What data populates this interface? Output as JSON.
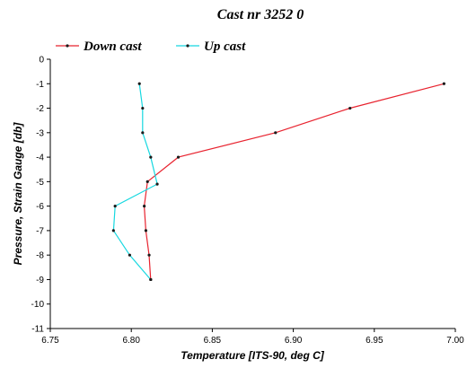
{
  "colors": {
    "down_cast": "#e8232f",
    "up_cast": "#16d8e0",
    "marker": "#1a1a1a",
    "axis": "#000000",
    "background": "#ffffff"
  },
  "chart_data": {
    "type": "line",
    "title": "Cast nr 3252 0",
    "xlabel": "Temperature [ITS-90, deg C]",
    "ylabel": "Pressure, Strain Gauge [db]",
    "xlim": [
      6.75,
      7.0
    ],
    "ylim": [
      -11,
      0
    ],
    "x_ticks": [
      "6.75",
      "6.80",
      "6.85",
      "6.90",
      "6.95",
      "7.00"
    ],
    "y_ticks": [
      "0",
      "-1",
      "-2",
      "-3",
      "-4",
      "-5",
      "-6",
      "-7",
      "-8",
      "-9",
      "-10",
      "-11"
    ],
    "grid": false,
    "legend_position": "top-left",
    "series": [
      {
        "name": "Down cast",
        "color": "#e8232f",
        "points": [
          {
            "x": 6.993,
            "y": -1.0
          },
          {
            "x": 6.935,
            "y": -2.0
          },
          {
            "x": 6.889,
            "y": -3.0
          },
          {
            "x": 6.829,
            "y": -4.0
          },
          {
            "x": 6.81,
            "y": -5.0
          },
          {
            "x": 6.808,
            "y": -6.0
          },
          {
            "x": 6.809,
            "y": -7.0
          },
          {
            "x": 6.811,
            "y": -8.0
          },
          {
            "x": 6.812,
            "y": -9.0
          }
        ]
      },
      {
        "name": "Up cast",
        "color": "#16d8e0",
        "points": [
          {
            "x": 6.812,
            "y": -9.0
          },
          {
            "x": 6.799,
            "y": -8.0
          },
          {
            "x": 6.789,
            "y": -7.0
          },
          {
            "x": 6.79,
            "y": -6.0
          },
          {
            "x": 6.816,
            "y": -5.1
          },
          {
            "x": 6.812,
            "y": -4.0
          },
          {
            "x": 6.807,
            "y": -3.0
          },
          {
            "x": 6.807,
            "y": -2.0
          },
          {
            "x": 6.805,
            "y": -1.0
          }
        ]
      }
    ]
  }
}
